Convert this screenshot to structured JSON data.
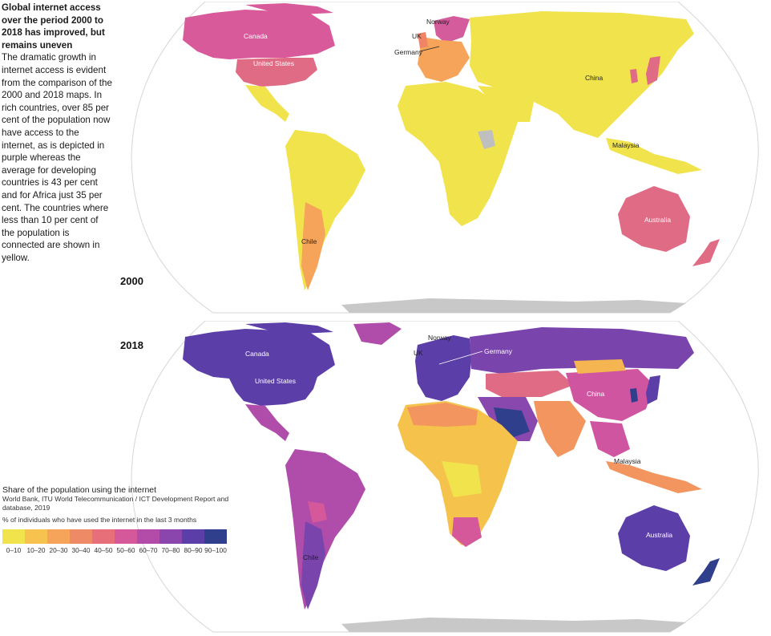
{
  "intro": {
    "headline": "Global internet access over the period 2000 to 2018 has improved, but remains uneven",
    "body": "The dramatic growth in internet access is evident from the comparison of the 2000 and 2018 maps. In rich countries, over 85 per cent of the population now have access to the internet, as is depicted in purple whereas the average for developing countries is 43 per cent and for Africa just 35 per cent. The countries where less than 10 per cent of the population is connected are shown in yellow."
  },
  "maps": [
    {
      "year": "2000",
      "labels": [
        "Canada",
        "United States",
        "Norway",
        "UK",
        "Germany",
        "China",
        "Malaysia",
        "Australia",
        "Chile"
      ],
      "region_colors": {
        "north_america": "#e06b84",
        "canada": "#d85a9a",
        "latin_america": "#f1e34c",
        "europe": "#f5a45a",
        "nordics": "#d45b9c",
        "asia": "#f1e34c",
        "africa": "#f1e34c",
        "oceania": "#e06b84",
        "japan": "#e06b84",
        "antarctica": "#c8c8c8"
      }
    },
    {
      "year": "2018",
      "labels": [
        "Canada",
        "United States",
        "Norway",
        "UK",
        "Germany",
        "China",
        "Malaysia",
        "Australia",
        "Chile"
      ],
      "region_colors": {
        "north_america": "#5c3ea8",
        "latin_america": "#b04caa",
        "europe": "#5c3ea8",
        "russia": "#7a44ad",
        "central_asia": "#e06b84",
        "china": "#cf55a0",
        "india": "#f2955e",
        "middle_east": "#8848ad",
        "saudi": "#3a3a8e",
        "africa": "#f5c24c",
        "southeast_asia": "#f2955e",
        "oceania": "#5c3ea8",
        "antarctica": "#c8c8c8"
      }
    }
  ],
  "legend": {
    "title": "Share of the population using the internet",
    "source": "World Bank, ITU World Telecommunication / ICT Development Report and database, 2019",
    "note": "% of individuals who have used the internet in the last 3 months",
    "bins": [
      {
        "label": "0–10",
        "color": "#f1e34c"
      },
      {
        "label": "10–20",
        "color": "#f7c24d"
      },
      {
        "label": "20–30",
        "color": "#f6a45a"
      },
      {
        "label": "30–40",
        "color": "#ef8a66"
      },
      {
        "label": "40–50",
        "color": "#e66f7a"
      },
      {
        "label": "50–60",
        "color": "#d5589a"
      },
      {
        "label": "60–70",
        "color": "#b34ca9"
      },
      {
        "label": "70–80",
        "color": "#8a46ad"
      },
      {
        "label": "80–90",
        "color": "#5c3ea8"
      },
      {
        "label": "90–100",
        "color": "#303f8c"
      }
    ]
  }
}
